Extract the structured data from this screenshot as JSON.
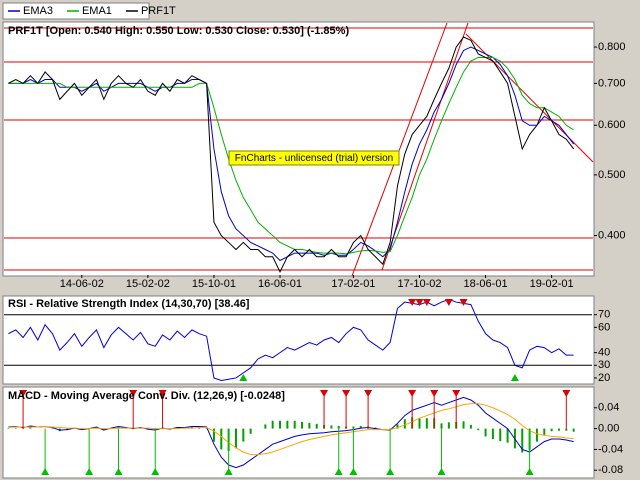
{
  "chart_data": [
    {
      "type": "line",
      "title": "PRF1T [Open: 0.540  High: 0.550  Low: 0.530  Close: 0.530] (-1.85%)",
      "watermark": "FnCharts - unlicensed (trial) version",
      "log_scale": true,
      "xlim": [
        -0.6,
        79.5
      ],
      "xticks": [
        {
          "value": 10,
          "label": "14-06-02"
        },
        {
          "value": 19,
          "label": "15-02-02"
        },
        {
          "value": 28,
          "label": "15-10-01"
        },
        {
          "value": 37,
          "label": "16-06-01"
        },
        {
          "value": 47,
          "label": "17-02-01"
        },
        {
          "value": 56,
          "label": "17-10-02"
        },
        {
          "value": 65,
          "label": "18-06-01"
        },
        {
          "value": 74,
          "label": "19-02-01"
        }
      ],
      "ylim": [
        0.346,
        0.874
      ],
      "yticks": [
        {
          "value": 0.4,
          "label": "0.400"
        },
        {
          "value": 0.5,
          "label": "0.500"
        },
        {
          "value": 0.6,
          "label": "0.600"
        },
        {
          "value": 0.7,
          "label": "0.700"
        },
        {
          "value": 0.8,
          "label": "0.800"
        }
      ],
      "series": [
        {
          "name": "EMA3",
          "color": "#0000cc",
          "values": [
            0.7,
            0.7,
            0.7,
            0.71,
            0.7,
            0.71,
            0.71,
            0.69,
            0.69,
            0.69,
            0.68,
            0.69,
            0.7,
            0.68,
            0.69,
            0.7,
            0.7,
            0.7,
            0.7,
            0.69,
            0.68,
            0.69,
            0.69,
            0.7,
            0.7,
            0.71,
            0.71,
            0.7,
            0.55,
            0.47,
            0.43,
            0.41,
            0.4,
            0.39,
            0.385,
            0.38,
            0.375,
            0.365,
            0.37,
            0.375,
            0.375,
            0.375,
            0.375,
            0.372,
            0.375,
            0.372,
            0.372,
            0.38,
            0.39,
            0.385,
            0.378,
            0.37,
            0.38,
            0.42,
            0.47,
            0.52,
            0.56,
            0.59,
            0.63,
            0.66,
            0.7,
            0.75,
            0.79,
            0.8,
            0.79,
            0.78,
            0.77,
            0.75,
            0.72,
            0.67,
            0.61,
            0.6,
            0.6,
            0.62,
            0.61,
            0.6,
            0.58,
            0.56
          ]
        },
        {
          "name": "EMA1",
          "color": "#00b000",
          "values": [
            0.7,
            0.7,
            0.7,
            0.7,
            0.7,
            0.7,
            0.7,
            0.7,
            0.69,
            0.69,
            0.69,
            0.69,
            0.69,
            0.69,
            0.69,
            0.69,
            0.69,
            0.69,
            0.69,
            0.69,
            0.69,
            0.69,
            0.69,
            0.69,
            0.69,
            0.69,
            0.7,
            0.7,
            0.64,
            0.58,
            0.53,
            0.49,
            0.46,
            0.44,
            0.42,
            0.41,
            0.4,
            0.39,
            0.385,
            0.38,
            0.38,
            0.378,
            0.376,
            0.375,
            0.375,
            0.375,
            0.374,
            0.376,
            0.378,
            0.379,
            0.378,
            0.376,
            0.377,
            0.4,
            0.43,
            0.46,
            0.5,
            0.53,
            0.57,
            0.61,
            0.65,
            0.69,
            0.73,
            0.76,
            0.77,
            0.77,
            0.77,
            0.76,
            0.74,
            0.71,
            0.67,
            0.65,
            0.64,
            0.64,
            0.63,
            0.62,
            0.6,
            0.59
          ]
        },
        {
          "name": "PRF1T",
          "color": "#000000",
          "values": [
            0.7,
            0.71,
            0.7,
            0.72,
            0.7,
            0.73,
            0.71,
            0.66,
            0.68,
            0.7,
            0.67,
            0.69,
            0.71,
            0.66,
            0.7,
            0.72,
            0.7,
            0.69,
            0.71,
            0.68,
            0.67,
            0.7,
            0.68,
            0.71,
            0.7,
            0.72,
            0.71,
            0.7,
            0.42,
            0.4,
            0.39,
            0.38,
            0.39,
            0.38,
            0.38,
            0.37,
            0.37,
            0.35,
            0.37,
            0.38,
            0.37,
            0.38,
            0.37,
            0.37,
            0.38,
            0.37,
            0.37,
            0.39,
            0.4,
            0.38,
            0.37,
            0.36,
            0.39,
            0.48,
            0.54,
            0.58,
            0.6,
            0.62,
            0.66,
            0.7,
            0.74,
            0.8,
            0.83,
            0.82,
            0.78,
            0.77,
            0.76,
            0.73,
            0.7,
            0.62,
            0.55,
            0.58,
            0.6,
            0.64,
            0.61,
            0.58,
            0.57,
            0.55
          ]
        }
      ]
    },
    {
      "type": "line",
      "title": "RSI - Relative Strength Index (14,30,70) [38.46]",
      "ylim": [
        16,
        84
      ],
      "yticks": [
        20,
        30,
        40,
        60,
        70
      ],
      "levels": [
        30,
        70
      ],
      "sell_signals": [
        55,
        56,
        57,
        60,
        62
      ],
      "buy_signals": [
        32,
        69
      ],
      "signal_colors": [
        "#e00000",
        "#00c000"
      ],
      "series": [
        {
          "color": "#0000dd",
          "values": [
            55,
            58,
            52,
            60,
            50,
            62,
            55,
            42,
            48,
            55,
            45,
            52,
            58,
            44,
            54,
            60,
            55,
            50,
            56,
            47,
            45,
            54,
            50,
            57,
            52,
            58,
            55,
            53,
            20,
            18,
            19,
            20,
            24,
            28,
            35,
            38,
            36,
            40,
            44,
            42,
            45,
            48,
            46,
            50,
            52,
            48,
            55,
            60,
            58,
            50,
            46,
            42,
            48,
            75,
            80,
            79,
            78,
            80,
            77,
            80,
            82,
            80,
            79,
            78,
            65,
            55,
            50,
            48,
            44,
            30,
            28,
            42,
            45,
            44,
            40,
            43,
            38,
            38
          ]
        }
      ]
    },
    {
      "type": "line",
      "title": "MACD - Moving Average Conv. Div. (12,26,9) [-0.0248]",
      "ylim": [
        -0.093,
        0.078
      ],
      "yticks": [
        -0.08,
        -0.04,
        {
          "value": 0,
          "label": "0.00"
        },
        0.04
      ],
      "sell_signals": [
        2,
        17,
        21,
        43,
        46,
        49,
        55,
        58,
        61,
        76
      ],
      "buy_signals": [
        5,
        11,
        15,
        20,
        30,
        45,
        47,
        52,
        59,
        71
      ],
      "signal_colors": [
        "#e00000",
        "#00c000"
      ],
      "histogram": {
        "color": "#00a000",
        "values": [
          0.001,
          0.001,
          -0.001,
          0.002,
          0.0,
          0.0,
          -0.001,
          -0.005,
          -0.003,
          0.0,
          -0.002,
          0.0,
          0.002,
          -0.003,
          0.001,
          0.003,
          0.001,
          -0.001,
          0.001,
          -0.002,
          -0.003,
          0.001,
          -0.001,
          0.002,
          0.001,
          0.003,
          0.002,
          0.001,
          -0.025,
          -0.04,
          -0.043,
          -0.038,
          -0.025,
          -0.01,
          0.0,
          0.008,
          0.015,
          0.015,
          0.015,
          0.015,
          0.013,
          0.011,
          0.009,
          0.007,
          0.006,
          0.005,
          0.004,
          0.004,
          0.005,
          0.004,
          0.002,
          0.0,
          -0.001,
          0.008,
          0.018,
          0.022,
          0.02,
          0.02,
          0.02,
          0.01,
          0.012,
          0.013,
          0.014,
          0.007,
          -0.003,
          -0.015,
          -0.02,
          -0.024,
          -0.027,
          -0.038,
          -0.046,
          -0.041,
          -0.025,
          -0.012,
          -0.005,
          -0.004,
          -0.004,
          -0.006
        ]
      },
      "series": [
        {
          "color": "#0000cc",
          "values": [
            0.003,
            0.004,
            0.002,
            0.005,
            0.003,
            0.004,
            0.002,
            -0.003,
            -0.002,
            0.001,
            -0.002,
            0.0,
            0.003,
            -0.003,
            0.001,
            0.004,
            0.002,
            0.0,
            0.002,
            -0.001,
            -0.003,
            0.001,
            -0.001,
            0.002,
            0.002,
            0.004,
            0.004,
            0.003,
            -0.03,
            -0.055,
            -0.07,
            -0.075,
            -0.07,
            -0.06,
            -0.05,
            -0.04,
            -0.03,
            -0.025,
            -0.02,
            -0.015,
            -0.012,
            -0.01,
            -0.009,
            -0.008,
            -0.006,
            -0.005,
            -0.004,
            -0.002,
            0.001,
            0.002,
            0.0,
            -0.002,
            -0.003,
            0.01,
            0.025,
            0.035,
            0.04,
            0.045,
            0.05,
            0.045,
            0.05,
            0.055,
            0.06,
            0.055,
            0.045,
            0.03,
            0.02,
            0.01,
            0.0,
            -0.02,
            -0.04,
            -0.045,
            -0.035,
            -0.025,
            -0.02,
            -0.02,
            -0.022,
            -0.025
          ]
        },
        {
          "color": "#ffa500",
          "values": [
            0.002,
            0.003,
            0.003,
            0.003,
            0.003,
            0.004,
            0.003,
            0.002,
            0.001,
            0.001,
            0.0,
            0.0,
            0.001,
            0.0,
            0.0,
            0.001,
            0.001,
            0.001,
            0.001,
            0.001,
            0.0,
            0.0,
            0.0,
            0.0,
            0.001,
            0.001,
            0.002,
            0.002,
            -0.005,
            -0.015,
            -0.027,
            -0.037,
            -0.045,
            -0.05,
            -0.05,
            -0.048,
            -0.045,
            -0.04,
            -0.035,
            -0.03,
            -0.025,
            -0.021,
            -0.018,
            -0.015,
            -0.012,
            -0.01,
            -0.008,
            -0.006,
            -0.004,
            -0.002,
            -0.002,
            -0.002,
            -0.002,
            0.002,
            0.007,
            0.013,
            0.02,
            0.025,
            0.03,
            0.035,
            0.038,
            0.042,
            0.046,
            0.048,
            0.048,
            0.045,
            0.04,
            0.034,
            0.027,
            0.018,
            0.006,
            -0.004,
            -0.01,
            -0.013,
            -0.015,
            -0.016,
            -0.018,
            -0.019
          ]
        }
      ]
    }
  ]
}
